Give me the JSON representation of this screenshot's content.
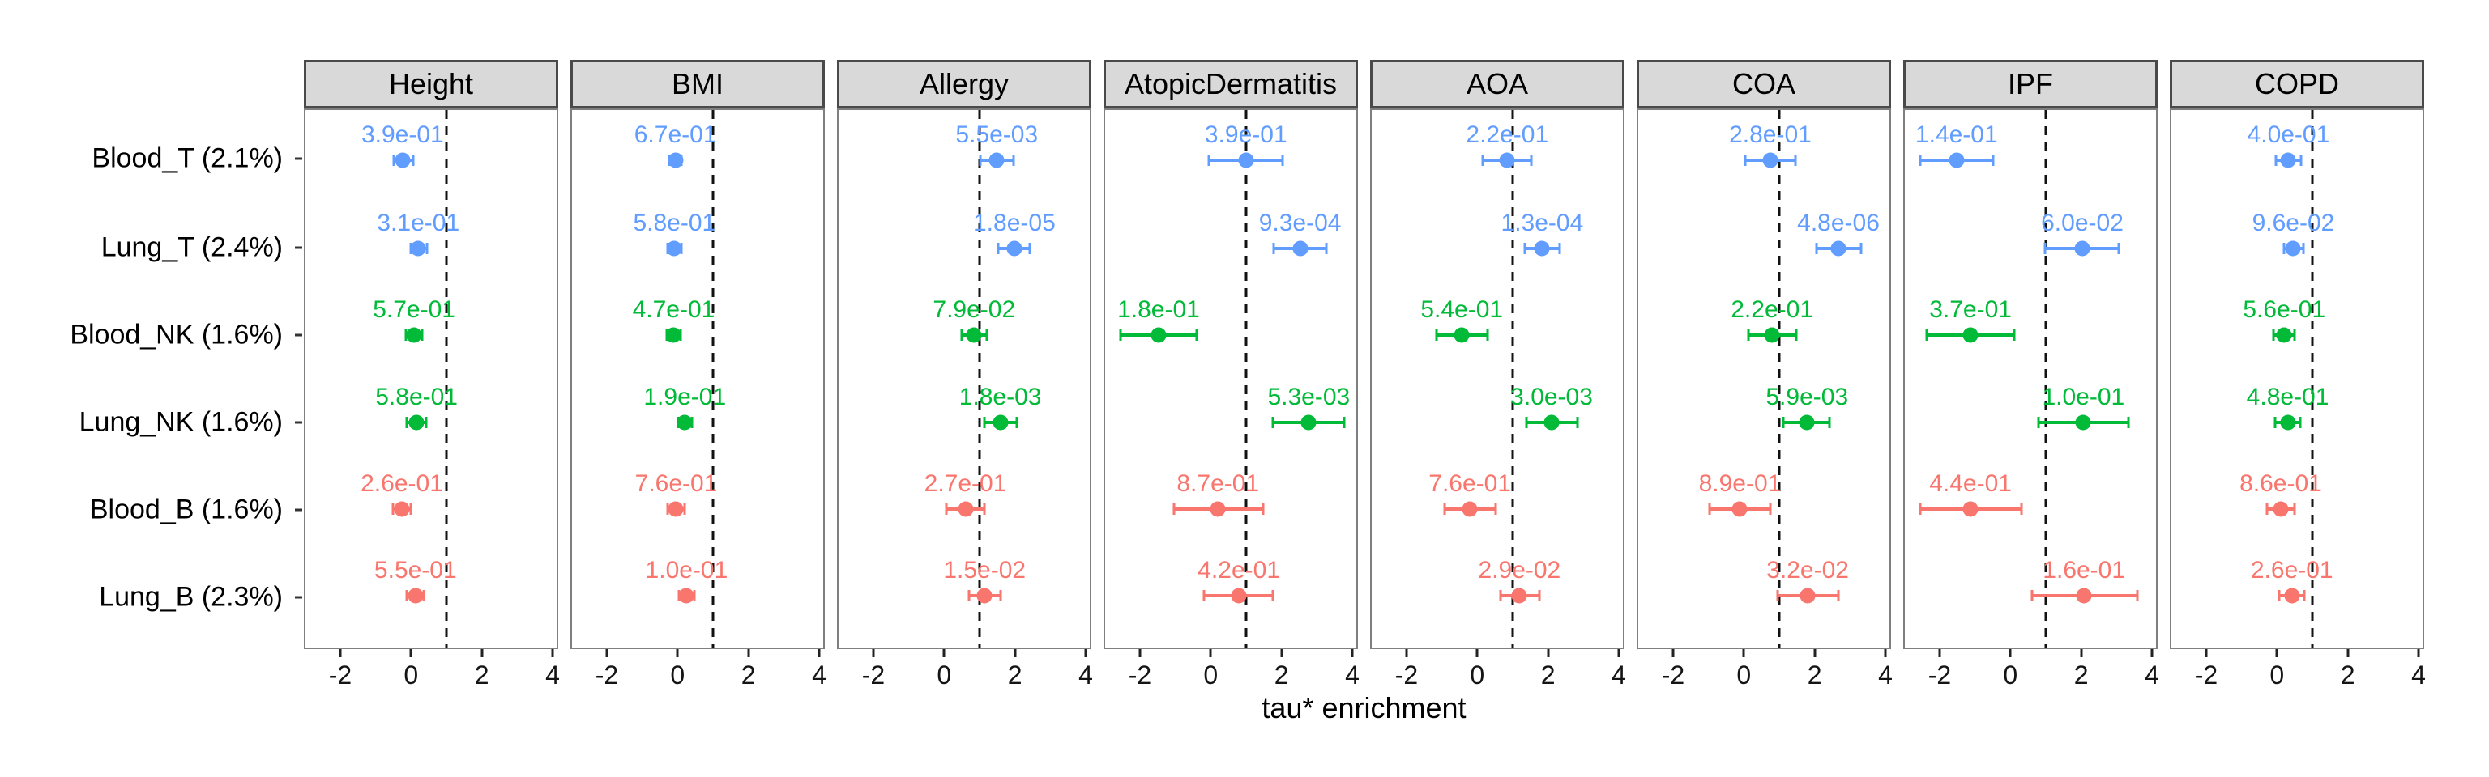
{
  "axis": {
    "title": "tau* enrichment"
  },
  "chart_data": {
    "type": "scatter",
    "subtype": "faceted-forest-plot-pointrange-with-pvalue-labels",
    "title": "",
    "xlabel": "tau* enrichment",
    "ylabel": "",
    "xlim": [
      -3.03,
      4.16
    ],
    "grid": false,
    "legend": "none",
    "reference_line_x": 1,
    "reference_line_style": "black dashed vertical",
    "x_ticks": [
      {
        "label": "-2",
        "value": -2
      },
      {
        "label": "0",
        "value": 0
      },
      {
        "label": "2",
        "value": 2
      },
      {
        "label": "4",
        "value": 4
      }
    ],
    "rows": [
      "Blood_T (2.1%)",
      "Lung_T (2.4%)",
      "Blood_NK (1.6%)",
      "Lung_NK (1.6%)",
      "Blood_B (1.6%)",
      "Lung_B (2.3%)"
    ],
    "row_colors": [
      "#619CFF",
      "#619CFF",
      "#00BA38",
      "#00BA38",
      "#F8766D",
      "#F8766D"
    ],
    "colors": {
      "T_cells_blue": "#619CFF",
      "NK_cells_green": "#00BA38",
      "B_cells_red": "#F8766D",
      "strip_fill": "#d9d9d9",
      "panel_border": "#7f7f7f"
    },
    "facets": [
      {
        "title": "Height",
        "points": [
          {
            "row": "Blood_T (2.1%)",
            "p": "3.9e-01",
            "est": -0.25,
            "lo": -0.5,
            "hi": 0.05
          },
          {
            "row": "Lung_T (2.4%)",
            "p": "3.1e-01",
            "est": 0.2,
            "lo": -0.02,
            "hi": 0.45
          },
          {
            "row": "Blood_NK (1.6%)",
            "p": "5.7e-01",
            "est": 0.08,
            "lo": -0.15,
            "hi": 0.32
          },
          {
            "row": "Lung_NK (1.6%)",
            "p": "5.8e-01",
            "est": 0.15,
            "lo": -0.12,
            "hi": 0.42
          },
          {
            "row": "Blood_B (1.6%)",
            "p": "2.6e-01",
            "est": -0.27,
            "lo": -0.52,
            "hi": -0.02
          },
          {
            "row": "Lung_B (2.3%)",
            "p": "5.5e-01",
            "est": 0.12,
            "lo": -0.12,
            "hi": 0.36
          }
        ]
      },
      {
        "title": "BMI",
        "points": [
          {
            "row": "Blood_T (2.1%)",
            "p": "6.7e-01",
            "est": -0.07,
            "lo": -0.25,
            "hi": 0.11
          },
          {
            "row": "Lung_T (2.4%)",
            "p": "5.8e-01",
            "est": -0.1,
            "lo": -0.3,
            "hi": 0.1
          },
          {
            "row": "Blood_NK (1.6%)",
            "p": "4.7e-01",
            "est": -0.12,
            "lo": -0.32,
            "hi": 0.08
          },
          {
            "row": "Lung_NK (1.6%)",
            "p": "1.9e-01",
            "est": 0.2,
            "lo": 0.0,
            "hi": 0.4
          },
          {
            "row": "Blood_B (1.6%)",
            "p": "7.6e-01",
            "est": -0.05,
            "lo": -0.3,
            "hi": 0.2
          },
          {
            "row": "Lung_B (2.3%)",
            "p": "1.0e-01",
            "est": 0.25,
            "lo": 0.02,
            "hi": 0.48
          }
        ]
      },
      {
        "title": "Allergy",
        "points": [
          {
            "row": "Blood_T (2.1%)",
            "p": "5.5e-03",
            "est": 1.5,
            "lo": 1.02,
            "hi": 1.98
          },
          {
            "row": "Lung_T (2.4%)",
            "p": "1.8e-05",
            "est": 2.0,
            "lo": 1.55,
            "hi": 2.45
          },
          {
            "row": "Blood_NK (1.6%)",
            "p": "7.9e-02",
            "est": 0.85,
            "lo": 0.5,
            "hi": 1.22
          },
          {
            "row": "Lung_NK (1.6%)",
            "p": "1.8e-03",
            "est": 1.6,
            "lo": 1.15,
            "hi": 2.08
          },
          {
            "row": "Blood_B (1.6%)",
            "p": "2.7e-01",
            "est": 0.6,
            "lo": 0.05,
            "hi": 1.15
          },
          {
            "row": "Lung_B (2.3%)",
            "p": "1.5e-02",
            "est": 1.15,
            "lo": 0.7,
            "hi": 1.62
          }
        ]
      },
      {
        "title": "AtopicDermatitis",
        "points": [
          {
            "row": "Blood_T (2.1%)",
            "p": "3.9e-01",
            "est": 1.0,
            "lo": -0.05,
            "hi": 2.05
          },
          {
            "row": "Lung_T (2.4%)",
            "p": "9.3e-04",
            "est": 2.55,
            "lo": 1.8,
            "hi": 3.3
          },
          {
            "row": "Blood_NK (1.6%)",
            "p": "1.8e-01",
            "est": -1.5,
            "lo": -2.58,
            "hi": -0.42
          },
          {
            "row": "Lung_NK (1.6%)",
            "p": "5.3e-03",
            "est": 2.8,
            "lo": 1.78,
            "hi": 3.82
          },
          {
            "row": "Blood_B (1.6%)",
            "p": "8.7e-01",
            "est": 0.2,
            "lo": -1.05,
            "hi": 1.5
          },
          {
            "row": "Lung_B (2.3%)",
            "p": "4.2e-01",
            "est": 0.8,
            "lo": -0.2,
            "hi": 1.78
          }
        ]
      },
      {
        "title": "AOA",
        "points": [
          {
            "row": "Blood_T (2.1%)",
            "p": "2.2e-01",
            "est": 0.85,
            "lo": 0.15,
            "hi": 1.55
          },
          {
            "row": "Lung_T (2.4%)",
            "p": "1.3e-04",
            "est": 1.85,
            "lo": 1.35,
            "hi": 2.35
          },
          {
            "row": "Blood_NK (1.6%)",
            "p": "5.4e-01",
            "est": -0.45,
            "lo": -1.18,
            "hi": 0.28
          },
          {
            "row": "Lung_NK (1.6%)",
            "p": "3.0e-03",
            "est": 2.12,
            "lo": 1.4,
            "hi": 2.85
          },
          {
            "row": "Blood_B (1.6%)",
            "p": "7.6e-01",
            "est": -0.22,
            "lo": -0.95,
            "hi": 0.52
          },
          {
            "row": "Lung_B (2.3%)",
            "p": "2.9e-02",
            "est": 1.2,
            "lo": 0.65,
            "hi": 1.76
          }
        ]
      },
      {
        "title": "COA",
        "points": [
          {
            "row": "Blood_T (2.1%)",
            "p": "2.8e-01",
            "est": 0.75,
            "lo": 0.02,
            "hi": 1.46
          },
          {
            "row": "Lung_T (2.4%)",
            "p": "4.8e-06",
            "est": 2.7,
            "lo": 2.08,
            "hi": 3.35
          },
          {
            "row": "Blood_NK (1.6%)",
            "p": "2.2e-01",
            "est": 0.8,
            "lo": 0.12,
            "hi": 1.5
          },
          {
            "row": "Lung_NK (1.6%)",
            "p": "5.9e-03",
            "est": 1.8,
            "lo": 1.12,
            "hi": 2.45
          },
          {
            "row": "Blood_B (1.6%)",
            "p": "8.9e-01",
            "est": -0.12,
            "lo": -1.0,
            "hi": 0.75
          },
          {
            "row": "Lung_B (2.3%)",
            "p": "3.2e-02",
            "est": 1.82,
            "lo": 0.95,
            "hi": 2.7
          }
        ]
      },
      {
        "title": "IPF",
        "points": [
          {
            "row": "Blood_T (2.1%)",
            "p": "1.4e-01",
            "est": -1.55,
            "lo": -2.6,
            "hi": -0.5
          },
          {
            "row": "Lung_T (2.4%)",
            "p": "6.0e-02",
            "est": 2.05,
            "lo": 0.98,
            "hi": 3.1
          },
          {
            "row": "Blood_NK (1.6%)",
            "p": "3.7e-01",
            "est": -1.15,
            "lo": -2.4,
            "hi": 0.1
          },
          {
            "row": "Lung_NK (1.6%)",
            "p": "1.0e-01",
            "est": 2.08,
            "lo": 0.8,
            "hi": 3.38
          },
          {
            "row": "Blood_B (1.6%)",
            "p": "4.4e-01",
            "est": -1.15,
            "lo": -2.6,
            "hi": 0.3
          },
          {
            "row": "Lung_B (2.3%)",
            "p": "1.6e-01",
            "est": 2.1,
            "lo": 0.6,
            "hi": 3.62
          }
        ]
      },
      {
        "title": "COPD",
        "points": [
          {
            "row": "Blood_T (2.1%)",
            "p": "4.0e-01",
            "est": 0.32,
            "lo": -0.04,
            "hi": 0.68
          },
          {
            "row": "Lung_T (2.4%)",
            "p": "9.6e-02",
            "est": 0.46,
            "lo": 0.2,
            "hi": 0.74
          },
          {
            "row": "Blood_NK (1.6%)",
            "p": "5.6e-01",
            "est": 0.2,
            "lo": -0.1,
            "hi": 0.5
          },
          {
            "row": "Lung_NK (1.6%)",
            "p": "4.8e-01",
            "est": 0.3,
            "lo": -0.07,
            "hi": 0.66
          },
          {
            "row": "Blood_B (1.6%)",
            "p": "8.6e-01",
            "est": 0.1,
            "lo": -0.3,
            "hi": 0.5
          },
          {
            "row": "Lung_B (2.3%)",
            "p": "2.6e-01",
            "est": 0.42,
            "lo": 0.06,
            "hi": 0.78
          }
        ]
      }
    ]
  }
}
